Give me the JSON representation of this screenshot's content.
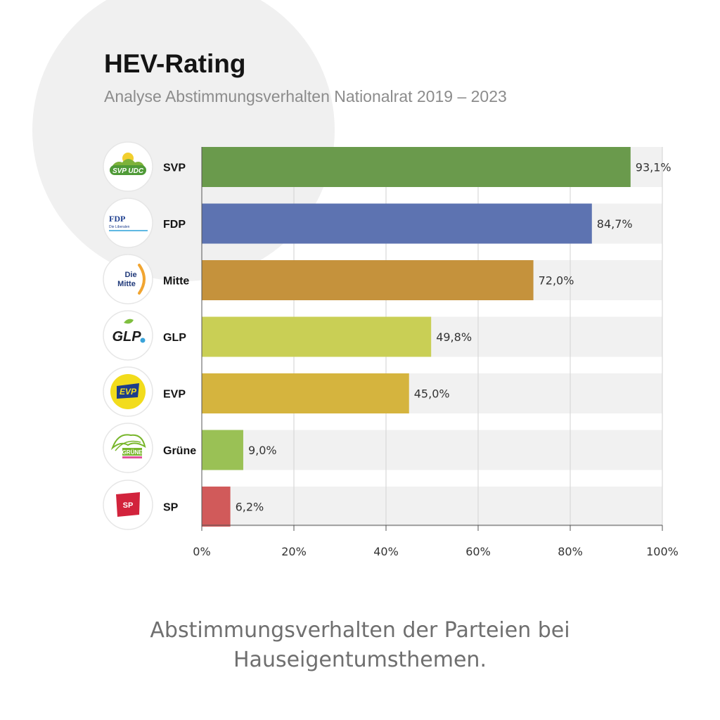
{
  "header": {
    "title": "HEV-Rating",
    "subtitle": "Analyse Abstimmungsverhalten Nationalrat 2019 – 2023"
  },
  "caption": {
    "line1": "Abstimmungsverhalten der Parteien bei",
    "line2": "Hauseigentumsthemen."
  },
  "logos": {
    "svp": "SVP UDC",
    "fdp_main": "FDP",
    "fdp_sub": "Die Liberalen",
    "mitte_line1": "Die",
    "mitte_line2": "Mitte",
    "glp": "GLP",
    "evp": "EVP",
    "gruene": "GRÜNE",
    "sp": "SP"
  },
  "chart_data": {
    "type": "bar",
    "orientation": "horizontal",
    "categories": [
      "SVP",
      "FDP",
      "Mitte",
      "GLP",
      "EVP",
      "Grüne",
      "SP"
    ],
    "values": [
      93.1,
      84.7,
      72.0,
      49.8,
      45.0,
      9.0,
      6.2
    ],
    "value_labels": [
      "93,1%",
      "84,7%",
      "72,0%",
      "49,8%",
      "45,0%",
      "9,0%",
      "6,2%"
    ],
    "colors": [
      "#6a9a4c",
      "#5d73b1",
      "#c5923c",
      "#c9cf55",
      "#d5b43e",
      "#9ac155",
      "#d15a5a"
    ],
    "xlim": [
      0,
      100
    ],
    "x_ticks": [
      0,
      20,
      40,
      60,
      80,
      100
    ],
    "x_tick_labels": [
      "0%",
      "20%",
      "40%",
      "60%",
      "80%",
      "100%"
    ],
    "grid": true,
    "track_color": "#f1f1f1"
  }
}
